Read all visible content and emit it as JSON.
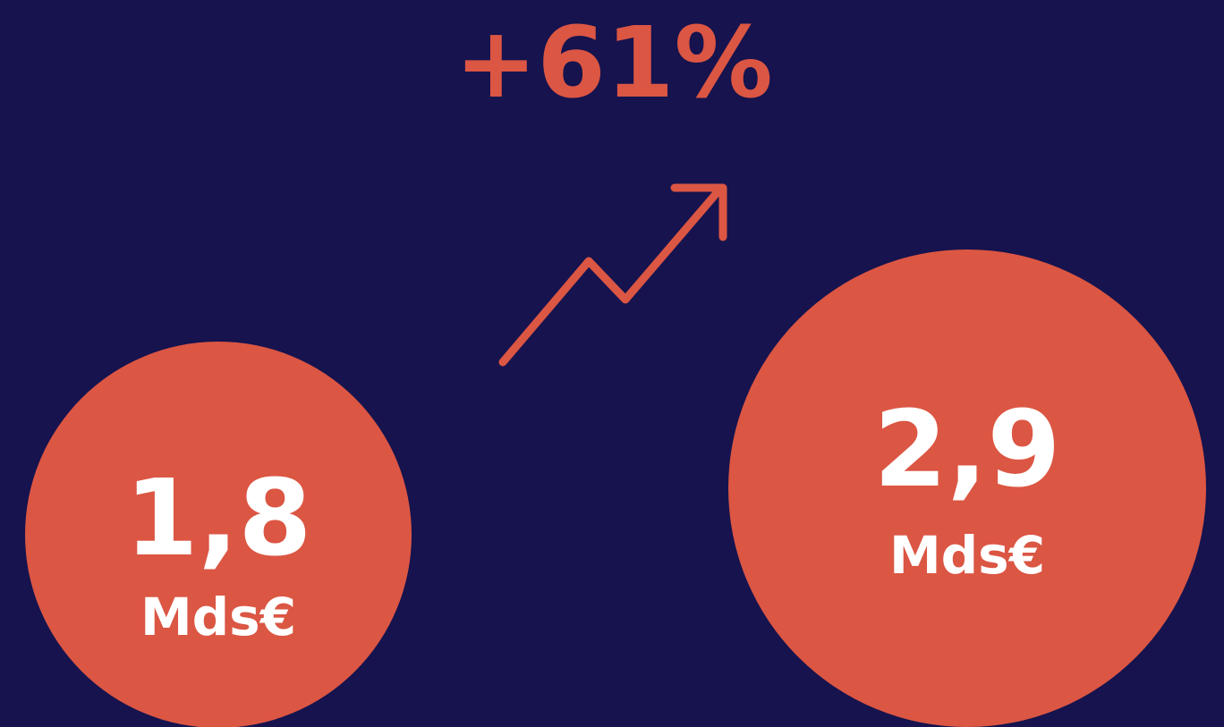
{
  "headline": "+61%",
  "before": {
    "value": "1,8",
    "unit": "Mds€"
  },
  "after": {
    "value": "2,9",
    "unit": "Mds€"
  }
}
